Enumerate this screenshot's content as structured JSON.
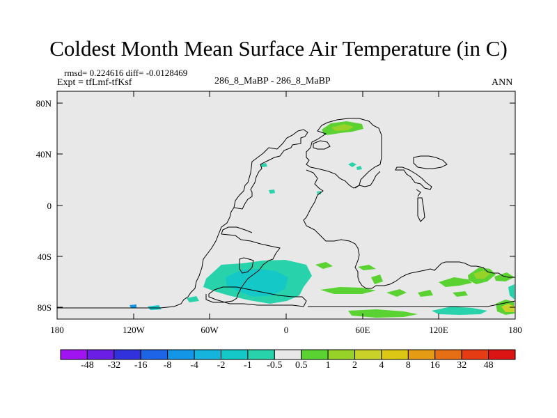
{
  "title": "Coldest Month Mean Surface Air Temperature (in C)",
  "stats": {
    "rmsd": "rmsd= 0.224616 diff= -0.0128469"
  },
  "experiment": "Expt = tfLmf-tfKsf",
  "case": "286_8_MaBP - 286_8_MaBP",
  "season": "ANN",
  "axes": {
    "y_ticks": [
      "80N",
      "40N",
      "0",
      "40S",
      "80S"
    ],
    "x_ticks": [
      "180",
      "120W",
      "60W",
      "0",
      "60E",
      "120E",
      "180"
    ]
  },
  "colorbar": {
    "labels": [
      "-48",
      "-32",
      "-16",
      "-8",
      "-4",
      "-2",
      "-1",
      "-0.5",
      "0.5",
      "1",
      "2",
      "4",
      "8",
      "16",
      "32",
      "48"
    ],
    "colors": [
      "#9f14f0",
      "#6a1ee6",
      "#3232dc",
      "#1e64e6",
      "#1496e6",
      "#14b4dc",
      "#14c8c8",
      "#28d2aa",
      "#e8e8e8",
      "#5ad232",
      "#96d228",
      "#c8d228",
      "#dcc814",
      "#e69b14",
      "#e66e14",
      "#e63c14",
      "#dc1414"
    ]
  }
}
